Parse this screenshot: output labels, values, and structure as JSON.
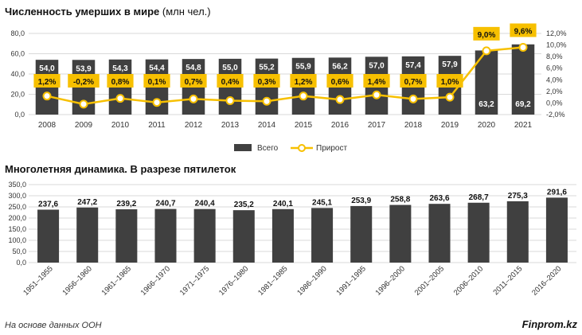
{
  "header": {
    "title_bold": "Численность умерших в мире",
    "title_unit": "(млн чел.)",
    "title2": "Многолетняя динамика. В разрезе пятилеток"
  },
  "footer": {
    "source": "На основе данных ООН",
    "brand": "Finprom.kz"
  },
  "colors": {
    "bar": "#404040",
    "line": "#f7c000",
    "label_box": "#f7c000",
    "grid": "#d9d9d9"
  },
  "chart_data": [
    {
      "type": "bar",
      "secondary_type": "line",
      "categories": [
        "2008",
        "2009",
        "2010",
        "2011",
        "2012",
        "2013",
        "2014",
        "2015",
        "2016",
        "2017",
        "2018",
        "2019",
        "2020",
        "2021"
      ],
      "series": [
        {
          "name": "Всего",
          "type": "bar",
          "values": [
            54.0,
            53.9,
            54.3,
            54.4,
            54.8,
            55.0,
            55.2,
            55.9,
            56.2,
            57.0,
            57.4,
            57.9,
            63.2,
            69.2
          ],
          "labels": [
            "54,0",
            "53,9",
            "54,3",
            "54,4",
            "54,8",
            "55,0",
            "55,2",
            "55,9",
            "56,2",
            "57,0",
            "57,4",
            "57,9",
            "63,2",
            "69,2"
          ]
        },
        {
          "name": "Прирост",
          "type": "line",
          "axis": "right",
          "values": [
            1.2,
            -0.2,
            0.8,
            0.1,
            0.7,
            0.4,
            0.3,
            1.2,
            0.6,
            1.4,
            0.7,
            1.0,
            9.0,
            9.6
          ],
          "labels": [
            "1,2%",
            "-0,2%",
            "0,8%",
            "0,1%",
            "0,7%",
            "0,4%",
            "0,3%",
            "1,2%",
            "0,6%",
            "1,4%",
            "0,7%",
            "1,0%",
            "9,0%",
            "9,6%"
          ]
        }
      ],
      "ylim": [
        0,
        80
      ],
      "y_ticks": [
        "0,0",
        "20,0",
        "40,0",
        "60,0",
        "80,0"
      ],
      "y2lim": [
        -2,
        12
      ],
      "y2_ticks": [
        "-2,0%",
        "0,0%",
        "2,0%",
        "4,0%",
        "6,0%",
        "8,0%",
        "10,0%",
        "12,0%"
      ],
      "legend": [
        "Всего",
        "Прирост"
      ],
      "legend_position": "bottom",
      "grid": true
    },
    {
      "type": "bar",
      "categories": [
        "1951–1955",
        "1956–1960",
        "1961–1965",
        "1966–1970",
        "1971–1975",
        "1976–1980",
        "1981–1985",
        "1986–1990",
        "1991–1995",
        "1996–2000",
        "2001–2005",
        "2006–2010",
        "2011–2015",
        "2016–2020"
      ],
      "series": [
        {
          "values": [
            237.6,
            247.2,
            239.2,
            240.7,
            240.4,
            235.2,
            240.1,
            245.1,
            253.9,
            258.8,
            263.6,
            268.7,
            275.3,
            291.6
          ],
          "labels": [
            "237,6",
            "247,2",
            "239,2",
            "240,7",
            "240,4",
            "235,2",
            "240,1",
            "245,1",
            "253,9",
            "258,8",
            "263,6",
            "268,7",
            "275,3",
            "291,6"
          ]
        }
      ],
      "ylim": [
        0,
        350
      ],
      "y_ticks": [
        "0,0",
        "50,0",
        "100,0",
        "150,0",
        "200,0",
        "250,0",
        "300,0",
        "350,0"
      ],
      "grid": true
    }
  ]
}
